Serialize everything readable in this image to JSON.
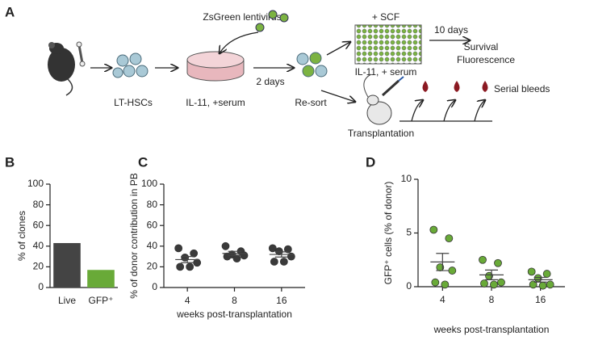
{
  "panel_labels": [
    "A",
    "B",
    "C",
    "D"
  ],
  "diagram": {
    "virus": "ZsGreen lentivirus",
    "cells": "LT-HSCs",
    "dish": "IL-11, +serum",
    "wait": "2 days",
    "resort": "Re-sort",
    "plate_top": "+ SCF",
    "plate_bottom": "IL-11, + serum",
    "culture": "10 days",
    "readout_1": "Survival",
    "readout_2": "Fluorescence",
    "transplant": "Transplantation",
    "bleeds": "Serial bleeds"
  },
  "chart_data": [
    {
      "type": "bar",
      "ylabel": "% of clones",
      "categories": [
        "Live",
        "GFP⁺"
      ],
      "values": [
        43,
        17
      ],
      "colors": [
        "#444444",
        "#69aa38"
      ],
      "ylim": [
        0,
        100
      ],
      "yticks": [
        0,
        20,
        40,
        60,
        80,
        100
      ]
    },
    {
      "type": "dot",
      "ylabel": "% of donor contribution in PB",
      "xlabel": "weeks post-transplantation",
      "categories": [
        "4",
        "8",
        "16"
      ],
      "values": [
        [
          38,
          33,
          29,
          24,
          20,
          20
        ],
        [
          40,
          35,
          32,
          31,
          30,
          28
        ],
        [
          38,
          37,
          35,
          30,
          25,
          25
        ]
      ],
      "means": [
        27,
        33,
        32
      ],
      "sems": [
        3,
        2,
        2.5
      ],
      "color": "#3a3a3a",
      "ylim": [
        0,
        100
      ],
      "yticks": [
        0,
        20,
        40,
        60,
        80,
        100
      ]
    },
    {
      "type": "dot",
      "ylabel": "GFP⁺ cells (% of donor)",
      "xlabel": "weeks post-transplantation",
      "categories": [
        "4",
        "8",
        "16"
      ],
      "values": [
        [
          5.3,
          4.5,
          1.8,
          1.5,
          0.4,
          0.2
        ],
        [
          2.5,
          2.2,
          1.0,
          0.4,
          0.3,
          0.2
        ],
        [
          1.4,
          1.2,
          0.8,
          0.2,
          0.2,
          0.1
        ]
      ],
      "means": [
        2.3,
        1.1,
        0.65
      ],
      "sems": [
        0.8,
        0.45,
        0.22
      ],
      "color": "#69aa38",
      "ylim": [
        0,
        10
      ],
      "yticks": [
        0,
        5,
        10
      ]
    }
  ]
}
